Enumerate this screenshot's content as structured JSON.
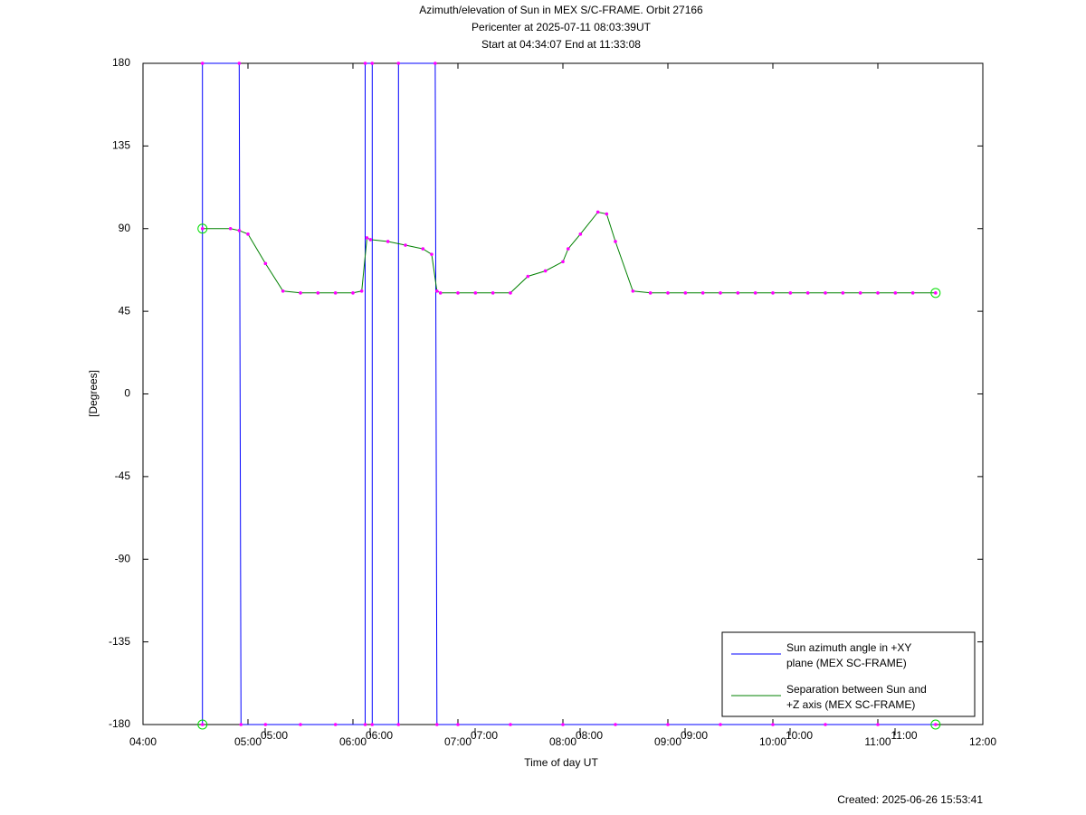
{
  "chart_data": {
    "type": "line",
    "title": [
      "Azimuth/elevation of Sun in MEX S/C-FRAME.  Orbit 27166",
      "Pericenter at 2025-07-11 08:03:39UT",
      "Start at 04:34:07 End at 11:33:08"
    ],
    "x_label": "Time of day UT",
    "y_label": "[Degrees]",
    "footnote": "Created: 2025-06-26 15:53:41",
    "xlim": [
      "04:00",
      "12:00"
    ],
    "xticks": [
      "04:00",
      "05:00",
      "06:00",
      "07:00",
      "08:00",
      "09:00",
      "10:00",
      "11:00",
      "12:00"
    ],
    "x_secondary_labels": [
      "05:00",
      "06:00",
      "07:00",
      "08:00",
      "09:00",
      "10:00",
      "11:00"
    ],
    "ylim": [
      -180,
      180
    ],
    "yticks": [
      180,
      135,
      90,
      45,
      0,
      -45,
      -90,
      -135,
      -180
    ],
    "grid": false,
    "legend": "lower right",
    "marker_color": "#ff00ff",
    "endpoint_color": "#00dd00",
    "series": [
      {
        "name": "Sun azimuth angle in +XY\nplane (MEX SC-FRAME)",
        "color": "#0000ff",
        "x": [
          "04:34",
          "04:34",
          "04:55",
          "04:56",
          "05:10",
          "05:30",
          "05:50",
          "06:07",
          "06:07",
          "06:11",
          "06:11",
          "06:26",
          "06:26",
          "06:47",
          "06:48",
          "07:00",
          "07:30",
          "08:00",
          "08:30",
          "09:00",
          "09:30",
          "10:00",
          "10:30",
          "11:00",
          "11:33"
        ],
        "values": [
          -180,
          180,
          180,
          -180,
          -180,
          -180,
          -180,
          -180,
          180,
          180,
          -180,
          -180,
          180,
          180,
          -180,
          -180,
          -180,
          -180,
          -180,
          -180,
          -180,
          -180,
          -180,
          -180,
          -180
        ]
      },
      {
        "name": "Separation between Sun and\n+Z axis (MEX SC-FRAME)",
        "color": "#008000",
        "x": [
          "04:34",
          "04:50",
          "04:55",
          "05:00",
          "05:10",
          "05:20",
          "05:30",
          "05:40",
          "05:50",
          "06:00",
          "06:05",
          "06:08",
          "06:10",
          "06:20",
          "06:30",
          "06:40",
          "06:45",
          "06:48",
          "06:50",
          "07:00",
          "07:10",
          "07:20",
          "07:30",
          "07:40",
          "07:50",
          "08:00",
          "08:03",
          "08:10",
          "08:20",
          "08:25",
          "08:30",
          "08:40",
          "08:50",
          "09:00",
          "09:10",
          "09:20",
          "09:30",
          "09:40",
          "09:50",
          "10:00",
          "10:10",
          "10:20",
          "10:30",
          "10:40",
          "10:50",
          "11:00",
          "11:10",
          "11:20",
          "11:33"
        ],
        "values": [
          90,
          90,
          89,
          87,
          71,
          56,
          55,
          55,
          55,
          55,
          56,
          85,
          84,
          83,
          81,
          79,
          76,
          56,
          55,
          55,
          55,
          55,
          55,
          64,
          67,
          72,
          79,
          87,
          99,
          98,
          83,
          56,
          55,
          55,
          55,
          55,
          55,
          55,
          55,
          55,
          55,
          55,
          55,
          55,
          55,
          55,
          55,
          55,
          55
        ]
      }
    ]
  }
}
